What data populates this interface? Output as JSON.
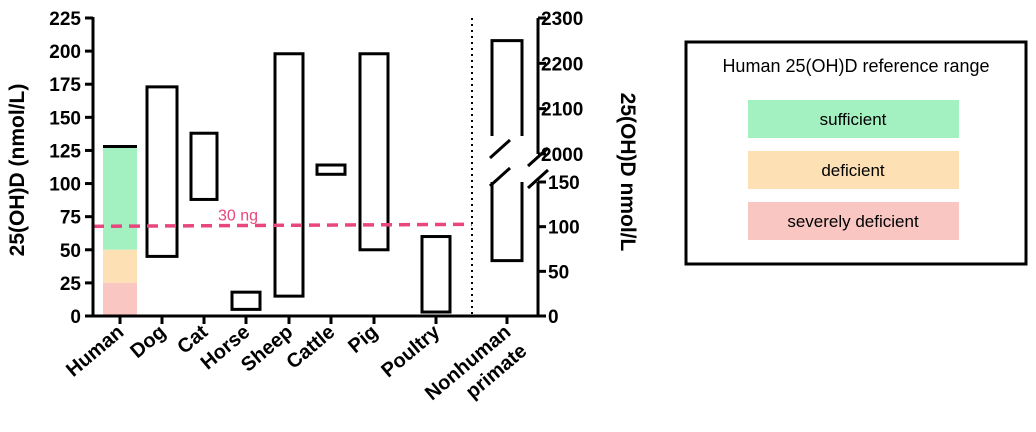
{
  "chart_data": {
    "type": "floating-bar",
    "ylabel_left": "25(OH)D (nmol/L)",
    "ylabel_right": "25(OH)D nmol/L",
    "y_left": {
      "range": [
        0,
        225
      ],
      "ticks": [
        0,
        25,
        50,
        75,
        100,
        125,
        150,
        175,
        200,
        225
      ]
    },
    "y_right": {
      "lower_segment": {
        "range": [
          0,
          200
        ],
        "ticks": [
          0,
          50,
          100,
          150
        ]
      },
      "upper_segment": {
        "range": [
          2000,
          2300
        ],
        "ticks": [
          2000,
          2100,
          2200,
          2300
        ]
      },
      "axis_break": true
    },
    "categories": [
      "Human",
      "Dog",
      "Cat",
      "Horse",
      "Sheep",
      "Cattle",
      "Pig",
      "Poultry"
    ],
    "ranges": [
      {
        "category": "Human",
        "min": 0,
        "max": 128,
        "fill": "human-reference-bands"
      },
      {
        "category": "Dog",
        "min": 45,
        "max": 173
      },
      {
        "category": "Cat",
        "min": 88,
        "max": 138
      },
      {
        "category": "Horse",
        "min": 5,
        "max": 18
      },
      {
        "category": "Sheep",
        "min": 15,
        "max": 198
      },
      {
        "category": "Cattle",
        "min": 107,
        "max": 114
      },
      {
        "category": "Pig",
        "min": 50,
        "max": 198
      },
      {
        "category": "Poultry",
        "min": 3,
        "max": 60
      }
    ],
    "right_axis_category": {
      "label_lines": [
        "Nonhuman",
        "primate"
      ],
      "min": 62,
      "max": 2250,
      "axis": "right-broken"
    },
    "reference_line": {
      "value": 73,
      "label": "30 ng",
      "color": "#e8467c",
      "style": "dashed"
    },
    "human_bands": [
      {
        "name": "sufficient",
        "from": 50,
        "to": 128,
        "color": "#a3f0c0"
      },
      {
        "name": "deficient",
        "from": 25,
        "to": 50,
        "color": "#fde0b4"
      },
      {
        "name": "severely deficient",
        "from": 0,
        "to": 25,
        "color": "#f9c6c2"
      }
    ],
    "legend": {
      "title": "Human 25(OH)D reference range",
      "position": "right",
      "items": [
        {
          "label": "sufficient",
          "color": "#a3f0c0"
        },
        {
          "label": "deficient",
          "color": "#fde0b4"
        },
        {
          "label": "severely deficient",
          "color": "#f9c6c2"
        }
      ]
    }
  }
}
